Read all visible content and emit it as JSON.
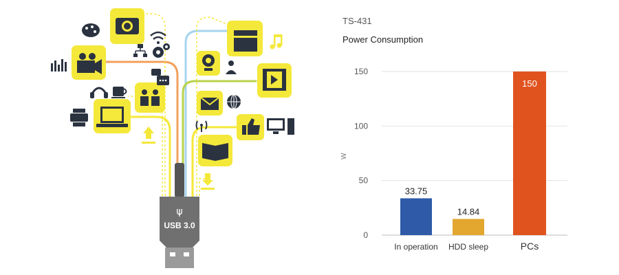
{
  "illustration": {
    "plug_label": "USB 3.0",
    "usb_symbol": "ψ",
    "icons": [
      "camera-icon",
      "palette-icon",
      "wifi-icon",
      "network-icon",
      "gears-icon",
      "video-camera-icon",
      "equalizer-icon",
      "chat-icon",
      "headphones-icon",
      "coffee-cup-icon",
      "users-icon",
      "printer-icon",
      "laptop-icon",
      "upload-icon",
      "clapperboard-icon",
      "music-note-icon",
      "webcam-icon",
      "person-icon",
      "film-icon",
      "mail-icon",
      "globe-icon",
      "antenna-icon",
      "thumbs-up-icon",
      "desktop-pc-icon",
      "book-icon",
      "download-icon"
    ],
    "colors": {
      "yellow": "#f4e83a",
      "dark": "#2b3341",
      "plug": "#707070",
      "orange": "#f2a05c",
      "blue": "#a6d4ee",
      "green": "#b8d24a"
    }
  },
  "chart_data": {
    "type": "bar",
    "model": "TS-431",
    "title": "Power Consumption",
    "ylabel": "W",
    "ylim": [
      0,
      150
    ],
    "yticks": [
      0,
      50,
      100,
      150
    ],
    "categories": [
      "In operation",
      "HDD sleep",
      "PCs"
    ],
    "values": [
      33.75,
      14.84,
      150
    ],
    "value_labels": [
      "33.75",
      "14.84",
      "150"
    ],
    "colors": [
      "#2e5aa8",
      "#e3a72f",
      "#e0531f"
    ],
    "grid": true
  }
}
